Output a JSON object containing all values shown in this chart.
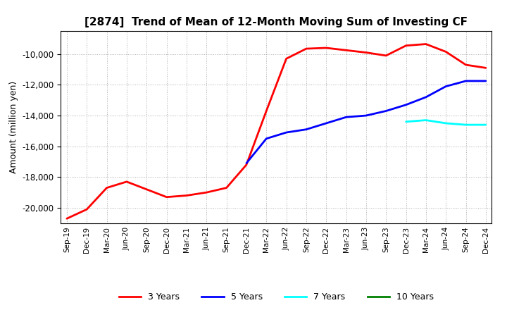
{
  "title": "[2874]  Trend of Mean of 12-Month Moving Sum of Investing CF",
  "ylabel": "Amount (million yen)",
  "background_color": "#ffffff",
  "plot_bg_color": "#ffffff",
  "grid_color": "#999999",
  "ylim": [
    -21000,
    -8500
  ],
  "yticks": [
    -20000,
    -18000,
    -16000,
    -14000,
    -12000,
    -10000
  ],
  "xtick_labels": [
    "Sep-19",
    "Dec-19",
    "Mar-20",
    "Jun-20",
    "Sep-20",
    "Dec-20",
    "Mar-21",
    "Jun-21",
    "Sep-21",
    "Dec-21",
    "Mar-22",
    "Jun-22",
    "Sep-22",
    "Dec-22",
    "Mar-23",
    "Jun-23",
    "Sep-23",
    "Dec-23",
    "Mar-24",
    "Jun-24",
    "Sep-24",
    "Dec-24"
  ],
  "series": {
    "3years": {
      "color": "#ff0000",
      "label": "3 Years",
      "x": [
        0,
        1,
        2,
        3,
        4,
        5,
        6,
        7,
        8,
        9,
        10,
        11,
        12,
        13,
        14,
        15,
        16,
        17,
        18,
        19,
        20,
        21
      ],
      "y": [
        -20700,
        -20100,
        -18700,
        -18300,
        -18800,
        -19300,
        -19200,
        -19000,
        -18700,
        -17200,
        -13700,
        -10300,
        -9650,
        -9600,
        -9750,
        -9900,
        -10100,
        -9450,
        -9350,
        -9850,
        -10700,
        -10900
      ]
    },
    "5years": {
      "color": "#0000ff",
      "label": "5 Years",
      "x": [
        9,
        10,
        11,
        12,
        13,
        14,
        15,
        16,
        17,
        18,
        19,
        20,
        21
      ],
      "y": [
        -17100,
        -15500,
        -15100,
        -14900,
        -14500,
        -14100,
        -14000,
        -13700,
        -13300,
        -12800,
        -12100,
        -11750,
        -11750
      ]
    },
    "7years": {
      "color": "#00ffff",
      "label": "7 Years",
      "x": [
        17,
        18,
        19,
        20,
        21
      ],
      "y": [
        -14400,
        -14300,
        -14500,
        -14600,
        -14600
      ]
    },
    "10years": {
      "color": "#008000",
      "label": "10 Years",
      "x": [],
      "y": []
    }
  }
}
